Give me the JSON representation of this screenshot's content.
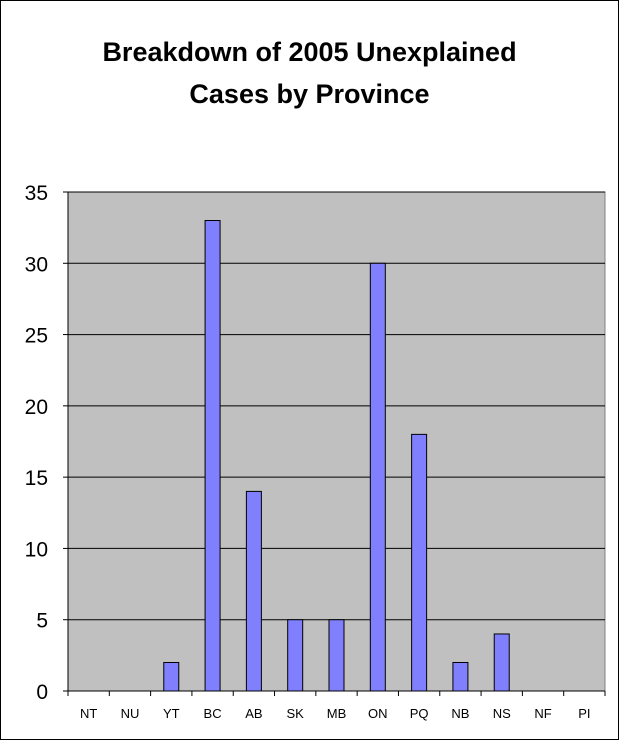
{
  "chart_data": {
    "type": "bar",
    "title_lines": [
      "Breakdown of 2005 Unexplained",
      "Cases by Province"
    ],
    "xlabel": "",
    "ylabel": "",
    "categories": [
      "NT",
      "NU",
      "YT",
      "BC",
      "AB",
      "SK",
      "MB",
      "ON",
      "PQ",
      "NB",
      "NS",
      "NF",
      "PI"
    ],
    "values": [
      0,
      0,
      2,
      33,
      14,
      5,
      5,
      30,
      18,
      2,
      4,
      0,
      0
    ],
    "ylim": [
      0,
      35
    ],
    "yticks": [
      0,
      5,
      10,
      15,
      20,
      25,
      30,
      35
    ],
    "grid": true,
    "legend": "none",
    "colors": {
      "bar_fill": "#8080ff",
      "bar_stroke": "#000000",
      "plot_background": "#c0c0c0",
      "gridline": "#000000"
    }
  }
}
